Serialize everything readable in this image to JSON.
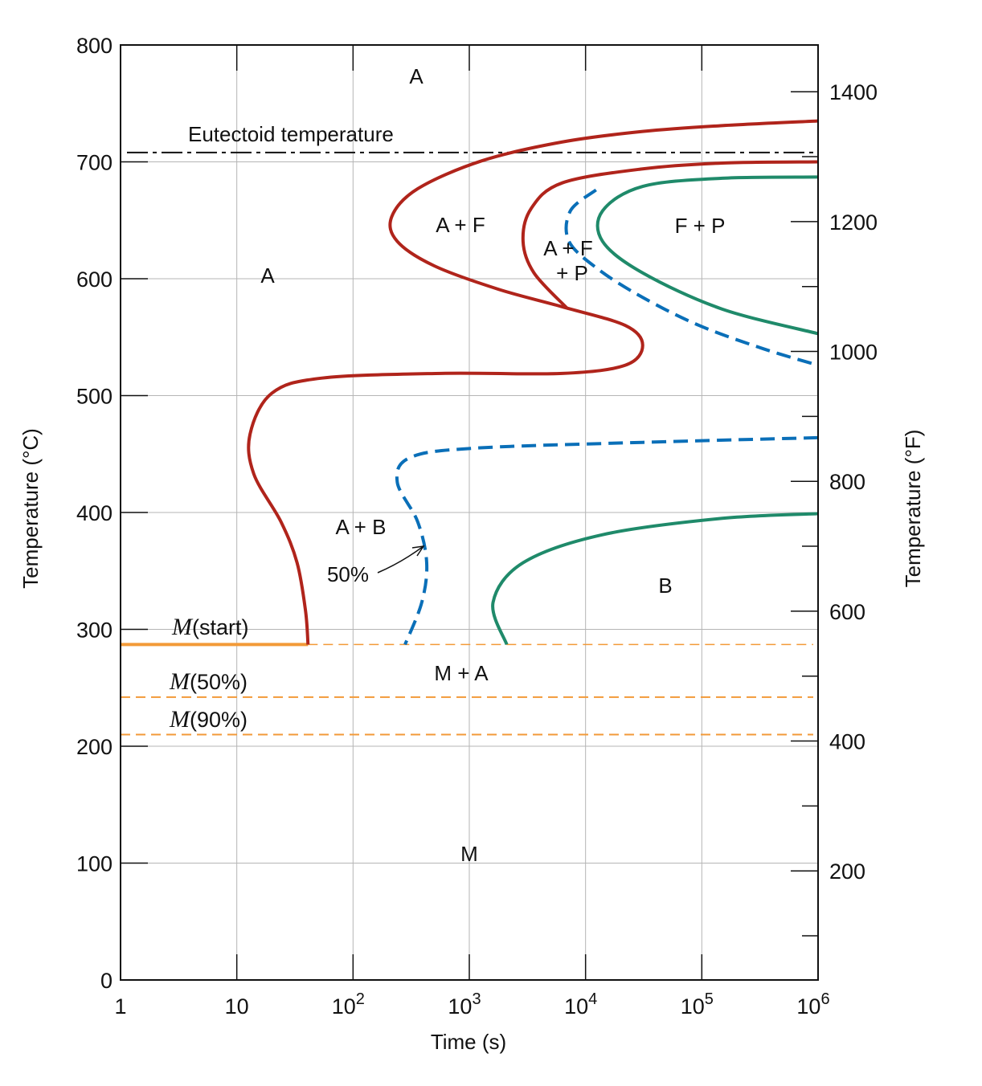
{
  "chart_data": {
    "type": "line",
    "title": "",
    "xlabel": "Time (s)",
    "ylabel": "Temperature (°C)",
    "y2label": "Temperature (°F)",
    "xscale": "log",
    "xlim": [
      1,
      1000000
    ],
    "ylim": [
      0,
      800
    ],
    "y2lim_F": [
      32,
      1472
    ],
    "grid": true,
    "x_ticks": [
      {
        "base": "1",
        "exp": ""
      },
      {
        "base": "10",
        "exp": ""
      },
      {
        "base": "10",
        "exp": "2"
      },
      {
        "base": "10",
        "exp": "3"
      },
      {
        "base": "10",
        "exp": "4"
      },
      {
        "base": "10",
        "exp": "5"
      },
      {
        "base": "10",
        "exp": "6"
      }
    ],
    "y_ticks": [
      "0",
      "100",
      "200",
      "300",
      "400",
      "500",
      "600",
      "700",
      "800"
    ],
    "y2_ticks": [
      "200",
      "400",
      "600",
      "800",
      "1000",
      "1200",
      "1400"
    ],
    "eutectoid": {
      "label": "Eutectoid temperature",
      "temperature_C": 708
    },
    "martensite": [
      {
        "label_italic": "M",
        "label_rest": "(start)",
        "temperature_C": 287,
        "solid_until_s": 41
      },
      {
        "label_italic": "M",
        "label_rest": "(50%)",
        "temperature_C": 242
      },
      {
        "label_italic": "M",
        "label_rest": "(90%)",
        "temperature_C": 210
      }
    ],
    "curves": [
      {
        "id": "transformation-start",
        "color": "#b0241b",
        "style": "solid",
        "points_s_C": [
          [
            1000000,
            735
          ],
          [
            150000,
            731
          ],
          [
            31000,
            726
          ],
          [
            6300,
            717
          ],
          [
            1290,
            701
          ],
          [
            360,
            677
          ],
          [
            215,
            653
          ],
          [
            240,
            632
          ],
          [
            500,
            611
          ],
          [
            1780,
            591
          ],
          [
            6300,
            576
          ],
          [
            22000,
            560
          ],
          [
            31000,
            543
          ],
          [
            22000,
            526
          ],
          [
            6300,
            519
          ],
          [
            575,
            519
          ],
          [
            54,
            515
          ],
          [
            20,
            502
          ],
          [
            13,
            467
          ],
          [
            14,
            433
          ],
          [
            24,
            392
          ],
          [
            33,
            357
          ],
          [
            39,
            316
          ],
          [
            41,
            287
          ]
        ]
      },
      {
        "id": "proeutectoid-ferrite-end",
        "color": "#b0241b",
        "style": "solid",
        "points_s_C": [
          [
            1000000,
            700
          ],
          [
            150000,
            699
          ],
          [
            31000,
            694
          ],
          [
            6300,
            682
          ],
          [
            3400,
            660
          ],
          [
            2900,
            632
          ],
          [
            3600,
            605
          ],
          [
            6900,
            575
          ]
        ]
      },
      {
        "id": "fifty-percent-upper",
        "color": "#0a6fb8",
        "style": "dashed",
        "points_s_C": [
          [
            12300,
            676
          ],
          [
            7400,
            658
          ],
          [
            7200,
            632
          ],
          [
            12900,
            608
          ],
          [
            31000,
            584
          ],
          [
            95000,
            560
          ],
          [
            340000,
            540
          ],
          [
            1000000,
            526
          ]
        ]
      },
      {
        "id": "transformation-end-upper",
        "color": "#1f8a6a",
        "style": "solid",
        "points_s_C": [
          [
            1000000,
            687
          ],
          [
            150000,
            686
          ],
          [
            31000,
            679
          ],
          [
            14000,
            658
          ],
          [
            14000,
            632
          ],
          [
            31000,
            605
          ],
          [
            150000,
            574
          ],
          [
            1000000,
            553
          ]
        ]
      },
      {
        "id": "fifty-percent-lower",
        "color": "#0a6fb8",
        "style": "dashed",
        "points_s_C": [
          [
            1000000,
            464
          ],
          [
            31000,
            460
          ],
          [
            1100,
            455
          ],
          [
            310,
            447
          ],
          [
            240,
            426
          ],
          [
            360,
            392
          ],
          [
            430,
            357
          ],
          [
            390,
            323
          ],
          [
            280,
            287
          ]
        ]
      },
      {
        "id": "transformation-end-lower",
        "color": "#1f8a6a",
        "style": "solid",
        "points_s_C": [
          [
            1000000,
            399
          ],
          [
            150000,
            395
          ],
          [
            14000,
            381
          ],
          [
            2900,
            357
          ],
          [
            1600,
            323
          ],
          [
            2100,
            287
          ]
        ]
      }
    ],
    "region_labels": [
      "A",
      "A",
      "A + F",
      "A + F",
      "+ P",
      "F + P",
      "A + B",
      "B",
      "M + A",
      "M"
    ],
    "annotation": "50%",
    "colors": {
      "martensite": "#f29a38",
      "grid": "#b5b5b5",
      "axis": "#111111"
    }
  }
}
